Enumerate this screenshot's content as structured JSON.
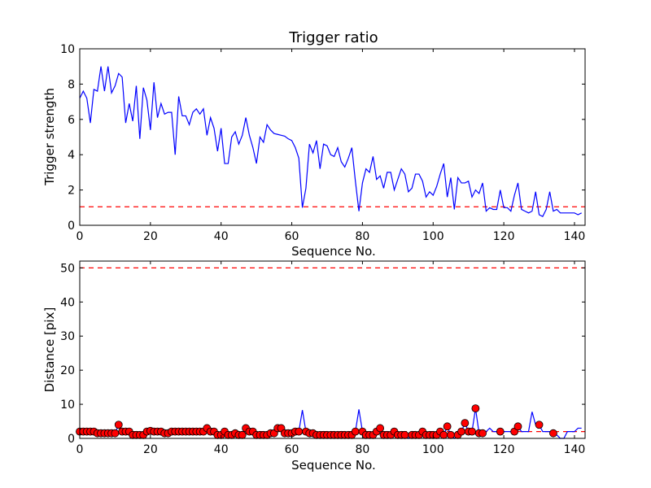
{
  "chart_data": [
    {
      "type": "line",
      "title": "Trigger ratio",
      "xlabel": "Sequence No.",
      "ylabel": "Trigger strength",
      "xlim": [
        0,
        143
      ],
      "ylim": [
        0,
        10
      ],
      "xticks": [
        0,
        20,
        40,
        60,
        80,
        100,
        120,
        140
      ],
      "yticks": [
        0,
        2,
        4,
        6,
        8,
        10
      ],
      "xtick_labels": [
        "0",
        "20",
        "40",
        "60",
        "80",
        "100",
        "120",
        "140"
      ],
      "ytick_labels": [
        "0",
        "2",
        "4",
        "6",
        "8",
        "10"
      ],
      "grid": false,
      "threshold": 1.05,
      "series": [
        {
          "values": [
            7.2,
            7.6,
            7.2,
            5.8,
            7.7,
            7.6,
            9.0,
            7.6,
            9.0,
            7.5,
            7.9,
            8.6,
            8.4,
            5.8,
            6.9,
            5.9,
            7.9,
            4.9,
            7.8,
            7.1,
            5.4,
            8.1,
            6.1,
            6.9,
            6.3,
            6.4,
            6.4,
            4.0,
            7.3,
            6.2,
            6.2,
            5.7,
            6.4,
            6.6,
            6.3,
            6.6,
            5.1,
            6.1,
            5.5,
            4.2,
            5.5,
            3.5,
            3.5,
            5.0,
            5.3,
            4.6,
            5.1,
            6.1,
            5.1,
            4.4,
            3.5,
            5.0,
            4.7,
            5.7,
            5.4,
            5.2,
            5.15,
            5.1,
            5.05,
            4.9,
            4.8,
            4.4,
            3.8,
            1.0,
            2.1,
            4.6,
            4.1,
            4.8,
            3.2,
            4.6,
            4.5,
            4.0,
            3.9,
            4.4,
            3.6,
            3.3,
            3.8,
            4.4,
            2.5,
            0.8,
            2.4,
            3.2,
            3.0,
            3.9,
            2.6,
            2.8,
            2.1,
            3.0,
            3.0,
            2.0,
            2.6,
            3.2,
            2.9,
            1.9,
            2.1,
            2.9,
            2.9,
            2.5,
            1.6,
            1.9,
            1.7,
            2.2,
            2.9,
            3.5,
            1.6,
            2.7,
            0.9,
            2.7,
            2.4,
            2.4,
            2.5,
            1.6,
            2.0,
            1.8,
            2.4,
            0.8,
            1.0,
            0.9,
            0.9,
            2.0,
            1.0,
            1.0,
            0.8,
            1.7,
            2.4,
            0.9,
            0.8,
            0.7,
            0.8,
            1.9,
            0.6,
            0.5,
            0.9,
            1.9,
            0.8,
            0.9,
            0.7,
            0.7,
            0.7,
            0.7,
            0.7,
            0.6,
            0.7
          ]
        }
      ]
    },
    {
      "type": "line",
      "title": "",
      "xlabel": "Sequence No.",
      "ylabel": "Distance [pix]",
      "xlim": [
        0,
        143
      ],
      "ylim": [
        0,
        52
      ],
      "xticks": [
        0,
        20,
        40,
        60,
        80,
        100,
        120,
        140
      ],
      "yticks": [
        0,
        10,
        20,
        30,
        40,
        50
      ],
      "xtick_labels": [
        "0",
        "20",
        "40",
        "60",
        "80",
        "100",
        "120",
        "140"
      ],
      "ytick_labels": [
        "0",
        "10",
        "20",
        "30",
        "40",
        "50"
      ],
      "grid": false,
      "threshold": 50,
      "lower_threshold": 2,
      "series": [
        {
          "values": [
            2.0,
            2.0,
            2.0,
            2.0,
            2.0,
            1.5,
            1.5,
            1.5,
            1.5,
            1.5,
            1.5,
            4.0,
            2.0,
            2.0,
            2.0,
            1.0,
            1.0,
            1.0,
            1.0,
            2.0,
            2.2,
            2.0,
            2.0,
            2.0,
            1.5,
            1.5,
            2.0,
            2.0,
            2.0,
            2.0,
            2.0,
            2.0,
            2.0,
            2.0,
            2.0,
            2.0,
            3.0,
            2.0,
            2.0,
            1.0,
            1.0,
            2.0,
            1.0,
            1.0,
            1.5,
            1.0,
            1.0,
            3.0,
            2.0,
            2.0,
            1.0,
            1.0,
            1.0,
            1.0,
            1.5,
            1.5,
            3.0,
            3.0,
            1.5,
            1.5,
            1.5,
            2.0,
            2.0,
            8.3,
            2.0,
            1.5,
            1.5,
            1.0,
            1.0,
            1.0,
            1.0,
            1.0,
            1.0,
            1.0,
            1.0,
            1.0,
            1.0,
            1.0,
            2.0,
            8.5,
            2.0,
            1.0,
            1.0,
            1.0,
            2.0,
            3.0,
            1.0,
            1.0,
            1.0,
            2.0,
            1.0,
            1.0,
            1.0,
            0.0,
            1.0,
            1.0,
            1.0,
            2.0,
            1.0,
            1.0,
            1.0,
            1.0,
            2.0,
            1.0,
            3.5,
            1.0,
            0.0,
            1.0,
            2.0,
            4.5,
            2.0,
            2.0,
            8.8,
            1.5,
            1.5,
            2.0,
            3.0,
            2.0,
            2.0,
            2.0,
            2.0,
            2.0,
            2.0,
            2.0,
            3.5,
            2.0,
            2.0,
            2.0,
            7.8,
            4.0,
            4.0,
            2.0,
            2.0,
            2.0,
            1.5,
            1.0,
            0.0,
            0.0,
            2.0,
            2.0,
            2.0,
            3.0,
            3.0
          ],
          "markers": [
            [
              0,
              2.0
            ],
            [
              1,
              2.0
            ],
            [
              2,
              2.0
            ],
            [
              3,
              2.0
            ],
            [
              4,
              2.0
            ],
            [
              5,
              1.5
            ],
            [
              6,
              1.5
            ],
            [
              7,
              1.5
            ],
            [
              8,
              1.5
            ],
            [
              9,
              1.5
            ],
            [
              10,
              1.5
            ],
            [
              11,
              4.0
            ],
            [
              12,
              2.0
            ],
            [
              13,
              2.0
            ],
            [
              14,
              2.0
            ],
            [
              15,
              1.0
            ],
            [
              16,
              1.0
            ],
            [
              17,
              1.0
            ],
            [
              18,
              1.0
            ],
            [
              19,
              2.0
            ],
            [
              20,
              2.2
            ],
            [
              21,
              2.0
            ],
            [
              22,
              2.0
            ],
            [
              23,
              2.0
            ],
            [
              24,
              1.5
            ],
            [
              25,
              1.5
            ],
            [
              26,
              2.0
            ],
            [
              27,
              2.0
            ],
            [
              28,
              2.0
            ],
            [
              29,
              2.0
            ],
            [
              30,
              2.0
            ],
            [
              31,
              2.0
            ],
            [
              32,
              2.0
            ],
            [
              33,
              2.0
            ],
            [
              34,
              2.0
            ],
            [
              35,
              2.0
            ],
            [
              36,
              3.0
            ],
            [
              37,
              2.0
            ],
            [
              38,
              2.0
            ],
            [
              39,
              1.0
            ],
            [
              40,
              1.0
            ],
            [
              41,
              2.0
            ],
            [
              42,
              1.0
            ],
            [
              43,
              1.0
            ],
            [
              44,
              1.5
            ],
            [
              45,
              1.0
            ],
            [
              46,
              1.0
            ],
            [
              47,
              3.0
            ],
            [
              48,
              2.0
            ],
            [
              49,
              2.0
            ],
            [
              50,
              1.0
            ],
            [
              51,
              1.0
            ],
            [
              52,
              1.0
            ],
            [
              53,
              1.0
            ],
            [
              54,
              1.5
            ],
            [
              55,
              1.5
            ],
            [
              56,
              3.0
            ],
            [
              57,
              3.0
            ],
            [
              58,
              1.5
            ],
            [
              59,
              1.5
            ],
            [
              60,
              1.5
            ],
            [
              61,
              2.0
            ],
            [
              62,
              2.0
            ],
            [
              64,
              2.0
            ],
            [
              65,
              1.5
            ],
            [
              66,
              1.5
            ],
            [
              67,
              1.0
            ],
            [
              68,
              1.0
            ],
            [
              69,
              1.0
            ],
            [
              70,
              1.0
            ],
            [
              71,
              1.0
            ],
            [
              72,
              1.0
            ],
            [
              73,
              1.0
            ],
            [
              74,
              1.0
            ],
            [
              75,
              1.0
            ],
            [
              76,
              1.0
            ],
            [
              77,
              1.0
            ],
            [
              78,
              2.0
            ],
            [
              80,
              2.0
            ],
            [
              81,
              1.0
            ],
            [
              82,
              1.0
            ],
            [
              83,
              1.0
            ],
            [
              84,
              2.0
            ],
            [
              85,
              3.0
            ],
            [
              86,
              1.0
            ],
            [
              87,
              1.0
            ],
            [
              88,
              1.0
            ],
            [
              89,
              2.0
            ],
            [
              90,
              1.0
            ],
            [
              91,
              1.0
            ],
            [
              92,
              1.0
            ],
            [
              94,
              1.0
            ],
            [
              95,
              1.0
            ],
            [
              96,
              1.0
            ],
            [
              97,
              2.0
            ],
            [
              98,
              1.0
            ],
            [
              99,
              1.0
            ],
            [
              100,
              1.0
            ],
            [
              101,
              1.0
            ],
            [
              102,
              2.0
            ],
            [
              103,
              1.0
            ],
            [
              104,
              3.5
            ],
            [
              105,
              1.0
            ],
            [
              107,
              1.0
            ],
            [
              108,
              2.0
            ],
            [
              109,
              4.5
            ],
            [
              110,
              2.0
            ],
            [
              111,
              2.0
            ],
            [
              112,
              8.8
            ],
            [
              113,
              1.5
            ],
            [
              114,
              1.5
            ],
            [
              119,
              2.0
            ],
            [
              123,
              2.0
            ],
            [
              124,
              3.5
            ],
            [
              130,
              4.0
            ],
            [
              134,
              1.5
            ]
          ]
        }
      ]
    }
  ],
  "colors": {
    "line": "#0000ff",
    "threshold": "#ff0000",
    "marker_fill": "#ff0000",
    "marker_edge": "#000000"
  }
}
